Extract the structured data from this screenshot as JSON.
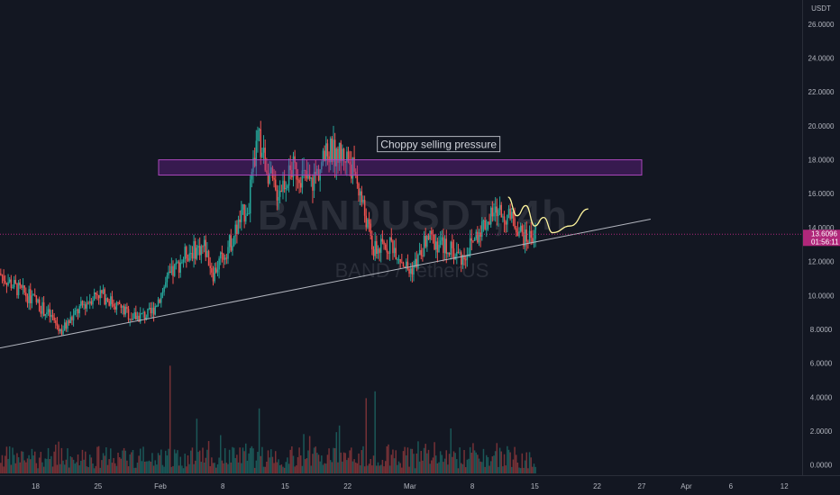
{
  "colors": {
    "background": "#131722",
    "up": "#26a69a",
    "down": "#ef5350",
    "zone": "#7b1fa2",
    "curve": "#fff59d",
    "trendline": "#b2b5be",
    "price_tag": "#b0277a"
  },
  "chart_data": {
    "type": "candlestick",
    "currency": "USDT",
    "watermark": {
      "symbol": "BANDUSDT, 4h",
      "description": "BAND / TetherUS"
    },
    "yaxis": {
      "ticks": [
        "26.0000",
        "24.0000",
        "22.0000",
        "20.0000",
        "18.0000",
        "16.0000",
        "14.0000",
        "12.0000",
        "10.0000",
        "8.0000",
        "6.0000",
        "4.0000",
        "2.0000",
        "0.0000"
      ],
      "tick_values": [
        26,
        24,
        22,
        20,
        18,
        16,
        14,
        12,
        10,
        8,
        6,
        4,
        2,
        0
      ],
      "range": [
        -0.6,
        27
      ]
    },
    "xaxis": {
      "ticks": [
        "18",
        "25",
        "Feb",
        "8",
        "15",
        "22",
        "Mar",
        "8",
        "15",
        "22",
        "27",
        "Apr",
        "6",
        "12"
      ],
      "tick_dates": [
        "2021-01-18",
        "2021-01-25",
        "2021-02-01",
        "2021-02-08",
        "2021-02-15",
        "2021-02-22",
        "2021-03-01",
        "2021-03-08",
        "2021-03-15",
        "2021-03-22",
        "2021-03-27",
        "2021-04-01",
        "2021-04-06",
        "2021-04-12"
      ],
      "range": [
        "2021-01-14",
        "2021-04-14"
      ]
    },
    "last_price": {
      "value": "13.6096",
      "countdown": "01:56:11",
      "price": 13.61
    },
    "annotation": {
      "text": "Choppy selling pressure",
      "date": "2021-03-03",
      "price": 18.9
    },
    "resistance_zone": {
      "from": "2021-01-14",
      "to": "2021-03-27",
      "low": 17.1,
      "high": 18.0
    },
    "trendline": {
      "points": [
        [
          "2021-01-14",
          6.9
        ],
        [
          "2021-03-28",
          14.5
        ]
      ]
    },
    "projection_curve": [
      [
        "2021-03-12",
        15.8
      ],
      [
        "2021-03-13",
        14.7
      ],
      [
        "2021-03-14",
        15.3
      ],
      [
        "2021-03-15",
        14.1
      ],
      [
        "2021-03-16",
        14.6
      ],
      [
        "2021-03-17",
        13.7
      ],
      [
        "2021-03-19",
        14.1
      ],
      [
        "2021-03-21",
        15.1
      ]
    ],
    "price_path": [
      [
        "2021-01-14",
        11.3
      ],
      [
        "2021-01-16",
        10.4
      ],
      [
        "2021-01-18",
        9.7
      ],
      [
        "2021-01-20",
        8.6
      ],
      [
        "2021-01-21",
        7.9
      ],
      [
        "2021-01-23",
        9.2
      ],
      [
        "2021-01-25",
        10.2
      ],
      [
        "2021-01-27",
        9.5
      ],
      [
        "2021-01-29",
        8.7
      ],
      [
        "2021-01-31",
        8.9
      ],
      [
        "2021-02-02",
        11.0
      ],
      [
        "2021-02-04",
        12.5
      ],
      [
        "2021-02-06",
        12.9
      ],
      [
        "2021-02-07",
        11.3
      ],
      [
        "2021-02-09",
        13.2
      ],
      [
        "2021-02-11",
        15.5
      ],
      [
        "2021-02-12",
        19.3
      ],
      [
        "2021-02-14",
        16.0
      ],
      [
        "2021-02-16",
        17.5
      ],
      [
        "2021-02-18",
        16.6
      ],
      [
        "2021-02-20",
        18.5
      ],
      [
        "2021-02-22",
        18.2
      ],
      [
        "2021-02-23",
        17.1
      ],
      [
        "2021-02-25",
        12.6
      ],
      [
        "2021-02-27",
        13.1
      ],
      [
        "2021-03-01",
        11.4
      ],
      [
        "2021-03-02",
        12.1
      ],
      [
        "2021-03-03",
        13.4
      ],
      [
        "2021-03-05",
        12.9
      ],
      [
        "2021-03-07",
        12.2
      ],
      [
        "2021-03-09",
        14.0
      ],
      [
        "2021-03-11",
        15.0
      ],
      [
        "2021-03-13",
        14.2
      ],
      [
        "2021-03-14",
        13.3
      ],
      [
        "2021-03-15",
        13.61
      ]
    ],
    "volume_spikes": [
      [
        "2021-02-02",
        6.3
      ],
      [
        "2021-02-05",
        3.2
      ],
      [
        "2021-02-12",
        3.8
      ],
      [
        "2021-02-17",
        2.3
      ],
      [
        "2021-02-21",
        2.8
      ],
      [
        "2021-02-24",
        4.4
      ],
      [
        "2021-02-25",
        4.8
      ]
    ]
  }
}
